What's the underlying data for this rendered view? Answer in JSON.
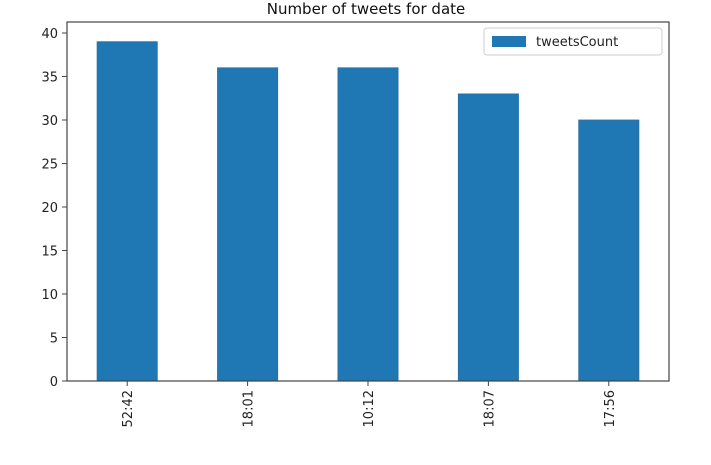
{
  "chart_data": {
    "type": "bar",
    "title": "Number of tweets for date",
    "xlabel": "",
    "ylabel": "",
    "categories": [
      "52:42",
      "18:01",
      "10:12",
      "18:07",
      "17:56"
    ],
    "series": [
      {
        "name": "tweetsCount",
        "values": [
          39,
          36,
          36,
          33,
          30
        ]
      }
    ],
    "ylim": [
      0,
      40
    ],
    "yticks": [
      0,
      5,
      10,
      15,
      20,
      25,
      30,
      35,
      40
    ],
    "bar_color": "#1f77b4",
    "grid": false,
    "legend_position": "top-right"
  }
}
